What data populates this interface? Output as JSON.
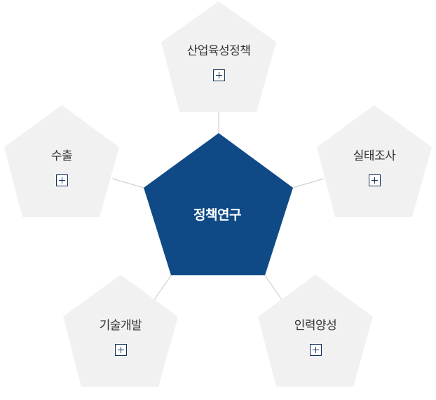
{
  "center": {
    "label": "정책연구",
    "color": "#0f4a86"
  },
  "node_fill": "#f1f1f1",
  "connector_color": "#c9c9c9",
  "nodes": [
    {
      "label": "산업육성정책",
      "icon": "plus-icon"
    },
    {
      "label": "실태조사",
      "icon": "plus-icon"
    },
    {
      "label": "인력양성",
      "icon": "plus-icon"
    },
    {
      "label": "기술개발",
      "icon": "plus-icon"
    },
    {
      "label": "수출",
      "icon": "plus-icon"
    }
  ]
}
